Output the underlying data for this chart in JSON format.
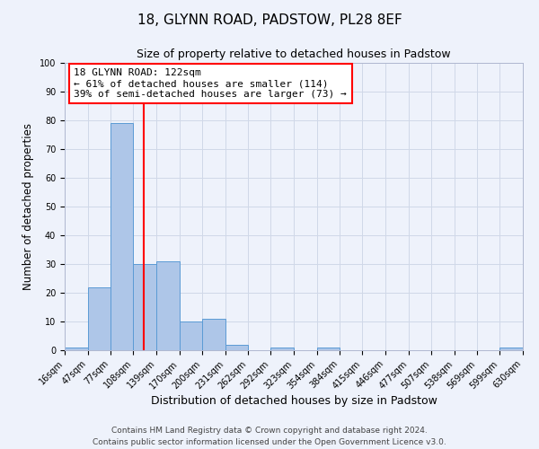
{
  "title": "18, GLYNN ROAD, PADSTOW, PL28 8EF",
  "subtitle": "Size of property relative to detached houses in Padstow",
  "xlabel": "Distribution of detached houses by size in Padstow",
  "ylabel": "Number of detached properties",
  "bin_edges": [
    16,
    47,
    77,
    108,
    139,
    170,
    200,
    231,
    262,
    292,
    323,
    354,
    384,
    415,
    446,
    477,
    507,
    538,
    569,
    599,
    630
  ],
  "bar_heights": [
    1,
    22,
    79,
    30,
    31,
    10,
    11,
    2,
    0,
    1,
    0,
    1,
    0,
    0,
    0,
    0,
    0,
    0,
    0,
    1
  ],
  "bar_color": "#aec6e8",
  "bar_edge_color": "#5b9bd5",
  "grid_color": "#d0d8e8",
  "background_color": "#eef2fb",
  "property_value": 122,
  "vline_color": "red",
  "annotation_text": "18 GLYNN ROAD: 122sqm\n← 61% of detached houses are smaller (114)\n39% of semi-detached houses are larger (73) →",
  "annotation_box_color": "white",
  "annotation_box_edge": "red",
  "ylim": [
    0,
    100
  ],
  "yticks": [
    0,
    10,
    20,
    30,
    40,
    50,
    60,
    70,
    80,
    90,
    100
  ],
  "footer_line1": "Contains HM Land Registry data © Crown copyright and database right 2024.",
  "footer_line2": "Contains public sector information licensed under the Open Government Licence v3.0.",
  "title_fontsize": 11,
  "subtitle_fontsize": 9,
  "xlabel_fontsize": 9,
  "ylabel_fontsize": 8.5,
  "tick_fontsize": 7,
  "annotation_fontsize": 8,
  "footer_fontsize": 6.5
}
